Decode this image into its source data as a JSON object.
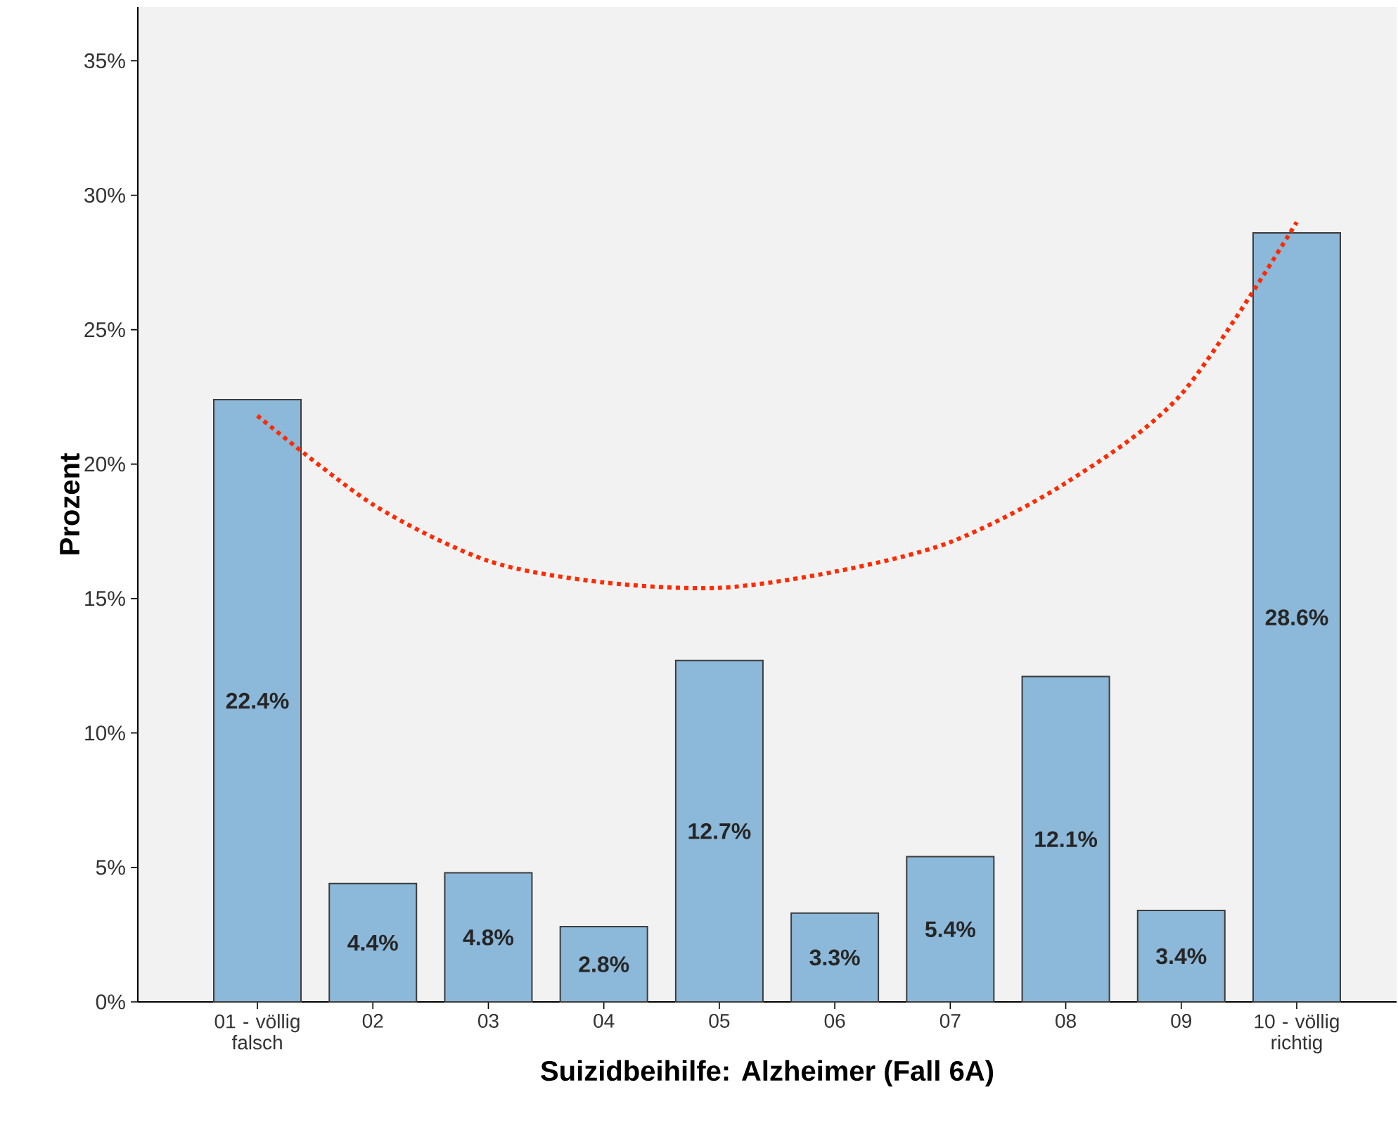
{
  "chart_data": {
    "type": "bar",
    "xlabel": "Suizidbeihilfe: Alzheimer (Fall 6A)",
    "ylabel": "Prozent",
    "categories": [
      "01 - völlig falsch",
      "02",
      "03",
      "04",
      "05",
      "06",
      "07",
      "08",
      "09",
      "10 - völlig richtig"
    ],
    "series": [
      {
        "color": "#8cb8d9",
        "values": [
          22.4,
          4.4,
          4.8,
          2.8,
          12.7,
          3.3,
          5.4,
          12.1,
          3.4,
          28.6
        ],
        "value_labels": [
          "22.4%",
          "4.4%",
          "4.8%",
          "2.8%",
          "12.7%",
          "3.3%",
          "5.4%",
          "12.1%",
          "3.4%",
          "28.6%"
        ]
      },
      {
        "type": "line",
        "color": "#ff2a00",
        "line_style": "dotted",
        "values": [
          21.8,
          18.5,
          16.4,
          15.6,
          15.4,
          16.0,
          17.1,
          19.3,
          22.6,
          29.0
        ]
      }
    ],
    "ylim": [
      0,
      37
    ],
    "yticks": [
      {
        "value": 0,
        "label": "0%"
      },
      {
        "value": 5,
        "label": "5%"
      },
      {
        "value": 10,
        "label": "10%"
      },
      {
        "value": 15,
        "label": "15%"
      },
      {
        "value": 20,
        "label": "20%"
      },
      {
        "value": 25,
        "label": "25%"
      },
      {
        "value": 30,
        "label": "30%"
      },
      {
        "value": 35,
        "label": "35%"
      }
    ],
    "grid": false,
    "legend": false
  }
}
